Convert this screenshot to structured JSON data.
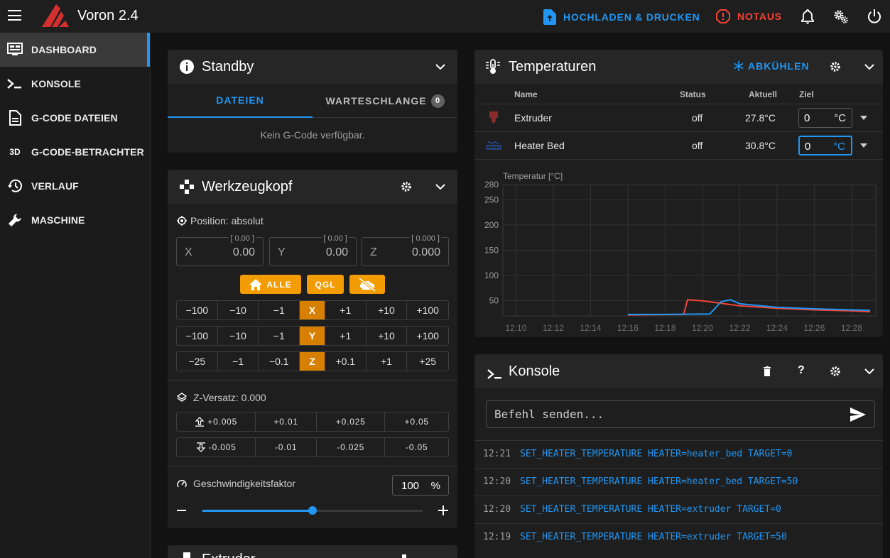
{
  "header": {
    "title": "Voron 2.4",
    "upload_label": "HOCHLADEN & DRUCKEN",
    "estop_label": "NOTAUS"
  },
  "sidebar": {
    "items": [
      {
        "label": "DASHBOARD",
        "icon": "monitor-dashboard-icon",
        "active": true
      },
      {
        "label": "KONSOLE",
        "icon": "console-icon"
      },
      {
        "label": "G-CODE DATEIEN",
        "icon": "file-document-icon"
      },
      {
        "label": "G-CODE-BETRACHTER",
        "icon": "3d-icon"
      },
      {
        "label": "VERLAUF",
        "icon": "history-icon"
      },
      {
        "label": "MASCHINE",
        "icon": "wrench-icon"
      }
    ]
  },
  "standby": {
    "title": "Standby",
    "tabs": [
      {
        "label": "DATEIEN"
      },
      {
        "label": "WARTESCHLANGE",
        "badge": "0"
      }
    ],
    "empty_text": "Kein G-Code verfügbar."
  },
  "toolhead": {
    "title": "Werkzeugkopf",
    "position_label": "Position: absolut",
    "axes": [
      {
        "label": "X",
        "value": "0.00",
        "hint": "[ 0.00 ]"
      },
      {
        "label": "Y",
        "value": "0.00",
        "hint": "[ 0.00 ]"
      },
      {
        "label": "Z",
        "value": "0.000",
        "hint": "[ 0.000 ]"
      }
    ],
    "home_all_label": "ALLE",
    "qgl_label": "QGL",
    "jog_x": [
      "−100",
      "−10",
      "−1",
      "X",
      "+1",
      "+10",
      "+100"
    ],
    "jog_y": [
      "−100",
      "−10",
      "−1",
      "Y",
      "+1",
      "+10",
      "+100"
    ],
    "jog_z": [
      "−25",
      "−1",
      "−0.1",
      "Z",
      "+0.1",
      "+1",
      "+25"
    ],
    "z_offset_label": "Z-Versatz: 0.000",
    "z_up": [
      "+0.005",
      "+0.01",
      "+0.025",
      "+0.05"
    ],
    "z_down": [
      "-0.005",
      "-0.01",
      "-0.025",
      "-0.05"
    ],
    "speed_label": "Geschwindigkeitsfaktor",
    "speed_value": "100",
    "speed_unit": "%",
    "speed_fraction": 0.5
  },
  "temperatures": {
    "title": "Temperaturen",
    "cooldown_label": "ABKÜHLEN",
    "columns": [
      "Name",
      "Status",
      "Aktuell",
      "Ziel"
    ],
    "rows": [
      {
        "name": "Extruder",
        "status": "off",
        "current": "27.8°C",
        "target": "0",
        "unit": "°C",
        "color": "#f44336"
      },
      {
        "name": "Heater Bed",
        "status": "off",
        "current": "30.8°C",
        "target": "0",
        "unit": "°C",
        "color": "#2196f3"
      }
    ]
  },
  "chart_data": {
    "type": "line",
    "title": "",
    "ylabel": "Temperatur [°C]",
    "xlabel": "",
    "ylim": [
      20,
      280
    ],
    "yticks": [
      280,
      250,
      200,
      150,
      100,
      50
    ],
    "xticks": [
      "12:10",
      "12:12",
      "12:14",
      "12:16",
      "12:18",
      "12:20",
      "12:22",
      "12:24",
      "12:26",
      "12:28"
    ],
    "grid": true,
    "series": [
      {
        "name": "Extruder",
        "color": "#f44336",
        "x": [
          "12:16",
          "12:19",
          "12:19.2",
          "12:20",
          "12:21",
          "12:22",
          "12:24",
          "12:26",
          "12:28",
          "12:29"
        ],
        "y": [
          22,
          23,
          52,
          50,
          45,
          40,
          35,
          32,
          30,
          28
        ]
      },
      {
        "name": "Heater Bed",
        "color": "#2196f3",
        "x": [
          "12:16",
          "12:18",
          "12:20.4",
          "12:21",
          "12:21.5",
          "12:22",
          "12:24",
          "12:26",
          "12:28",
          "12:29"
        ],
        "y": [
          23,
          23,
          24,
          48,
          52,
          44,
          37,
          34,
          32,
          31
        ]
      }
    ]
  },
  "console": {
    "title": "Konsole",
    "placeholder": "Befehl senden...",
    "entries": [
      {
        "time": "12:21",
        "cmd": "SET_HEATER_TEMPERATURE HEATER=heater_bed TARGET=0"
      },
      {
        "time": "12:20",
        "cmd": "SET_HEATER_TEMPERATURE HEATER=heater_bed TARGET=50"
      },
      {
        "time": "12:20",
        "cmd": "SET_HEATER_TEMPERATURE HEATER=extruder TARGET=0"
      },
      {
        "time": "12:19",
        "cmd": "SET_HEATER_TEMPERATURE HEATER=extruder TARGET=50"
      }
    ]
  },
  "extruder_panel": {
    "title": "Extruder"
  }
}
